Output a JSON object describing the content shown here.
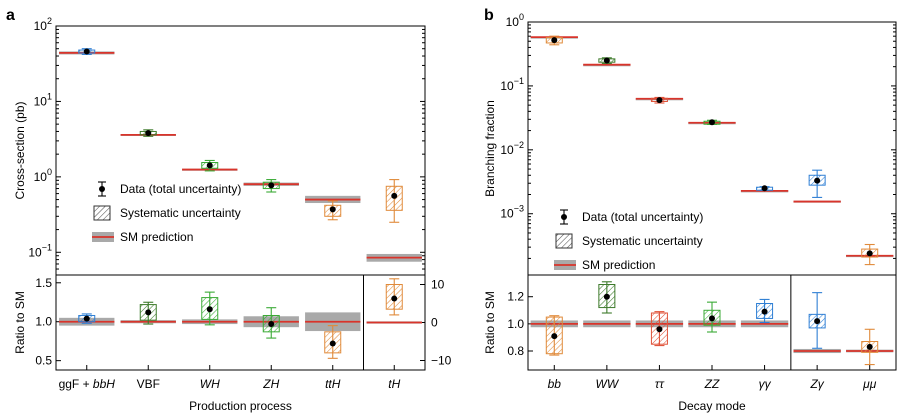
{
  "colors": {
    "blue": "#2f7fd4",
    "dark_green": "#3d7a2a",
    "green": "#3aaa35",
    "orange": "#e08a3a",
    "red": "#e0533a",
    "sm_line": "#d9342b",
    "sm_band": "#a9a9a9"
  },
  "chart_data": [
    {
      "panel_label": "a",
      "type": "scatter",
      "xlabel": "Production process",
      "categories": [
        "ggF + bbH",
        "VBF",
        "WH",
        "ZH",
        "ttH",
        "tH"
      ],
      "category_parts": [
        [
          {
            "t": "ggF + ",
            "i": false
          },
          {
            "t": "bbH",
            "i": true
          }
        ],
        [
          {
            "t": "VBF",
            "i": false
          }
        ],
        [
          {
            "t": "WH",
            "i": true
          }
        ],
        [
          {
            "t": "ZH",
            "i": true
          }
        ],
        [
          {
            "t": "ttH",
            "i": true
          }
        ],
        [
          {
            "t": "tH",
            "i": true
          }
        ]
      ],
      "category_colors": [
        "blue",
        "dark_green",
        "green",
        "green",
        "orange",
        "orange"
      ],
      "top": {
        "ylabel": "Cross-section (pb)",
        "scale": "log",
        "ylim": [
          0.05,
          100
        ],
        "tick_values": [
          0.1,
          1,
          10,
          100
        ],
        "tick_labels": [
          {
            "base": "10",
            "exp": "−1"
          },
          {
            "base": "10",
            "exp": "0"
          },
          {
            "base": "10",
            "exp": "1"
          },
          {
            "base": "10",
            "exp": "2"
          }
        ],
        "data": [
          46,
          3.8,
          1.42,
          0.77,
          0.37,
          0.56
        ],
        "total_lo": [
          42,
          3.45,
          1.2,
          0.63,
          0.27,
          0.25
        ],
        "total_hi": [
          50,
          4.2,
          1.65,
          0.92,
          0.48,
          0.92
        ],
        "syst_lo": [
          44,
          3.6,
          1.3,
          0.7,
          0.3,
          0.36
        ],
        "syst_hi": [
          48,
          4.0,
          1.55,
          0.85,
          0.42,
          0.75
        ],
        "sm": [
          44,
          3.6,
          1.25,
          0.8,
          0.5,
          0.085
        ],
        "sm_unc_lo": [
          42,
          3.5,
          1.22,
          0.76,
          0.45,
          0.075
        ],
        "sm_unc_hi": [
          46,
          3.7,
          1.28,
          0.84,
          0.56,
          0.095
        ]
      },
      "ratio": {
        "ylabel": "Ratio to SM",
        "ylim": [
          0.38,
          1.6
        ],
        "tick_values": [
          0.5,
          1.0,
          1.5
        ],
        "tick_labels": [
          "0.5",
          "1.0",
          "1.5"
        ],
        "right_axis": {
          "ylim": [
            -12.5,
            12.5
          ],
          "tick_values": [
            -10,
            0,
            10
          ],
          "tick_labels": [
            "−10",
            "0",
            "10"
          ],
          "applies_to": [
            5
          ]
        },
        "data": [
          1.04,
          1.12,
          1.16,
          0.97,
          0.72,
          6.3
        ],
        "total_lo": [
          0.98,
          0.97,
          0.96,
          0.79,
          0.53,
          2.0
        ],
        "total_hi": [
          1.1,
          1.25,
          1.38,
          1.18,
          0.95,
          11.5
        ],
        "syst_lo": [
          1.0,
          1.02,
          1.03,
          0.87,
          0.6,
          3.5
        ],
        "syst_hi": [
          1.08,
          1.22,
          1.31,
          1.08,
          0.87,
          10.0
        ],
        "sm": [
          1,
          1,
          1,
          1,
          1,
          0
        ],
        "sm_unc_lo": [
          0.95,
          0.98,
          0.97,
          0.93,
          0.88,
          -0.3
        ],
        "sm_unc_hi": [
          1.05,
          1.02,
          1.03,
          1.07,
          1.12,
          0.3
        ]
      },
      "legend": [
        {
          "label": "Data (total uncertainty)",
          "kind": "data"
        },
        {
          "label": "Systematic uncertainty",
          "kind": "syst"
        },
        {
          "label": "SM prediction",
          "kind": "sm"
        }
      ]
    },
    {
      "panel_label": "b",
      "type": "scatter",
      "xlabel": "Decay mode",
      "categories": [
        "bb",
        "WW",
        "ττ",
        "ZZ",
        "γγ",
        "Zγ",
        "μμ"
      ],
      "category_parts": [
        [
          {
            "t": "bb",
            "i": true
          }
        ],
        [
          {
            "t": "WW",
            "i": true
          }
        ],
        [
          {
            "t": "ττ",
            "i": true
          }
        ],
        [
          {
            "t": "ZZ",
            "i": true
          }
        ],
        [
          {
            "t": "γγ",
            "i": true
          }
        ],
        [
          {
            "t": "Zγ",
            "i": true
          }
        ],
        [
          {
            "t": "μμ",
            "i": true
          }
        ]
      ],
      "category_colors": [
        "orange",
        "dark_green",
        "red",
        "green",
        "blue",
        "blue",
        "orange"
      ],
      "top": {
        "ylabel": "Branching fraction",
        "scale": "log",
        "ylim": [
          0.00011,
          1
        ],
        "tick_values": [
          0.001,
          0.01,
          0.1,
          1
        ],
        "tick_labels": [
          {
            "base": "10",
            "exp": "−3"
          },
          {
            "base": "10",
            "exp": "−2"
          },
          {
            "base": "10",
            "exp": "−1"
          },
          {
            "base": "10",
            "exp": "0"
          }
        ],
        "data": [
          0.52,
          0.25,
          0.06,
          0.027,
          0.0025,
          0.0033,
          0.00024
        ],
        "total_lo": [
          0.44,
          0.225,
          0.054,
          0.025,
          0.00233,
          0.0018,
          0.00016
        ],
        "total_hi": [
          0.6,
          0.275,
          0.066,
          0.029,
          0.00265,
          0.0048,
          0.00033
        ],
        "syst_lo": [
          0.47,
          0.235,
          0.057,
          0.026,
          0.0024,
          0.0028,
          0.00021
        ],
        "syst_hi": [
          0.57,
          0.265,
          0.064,
          0.028,
          0.0026,
          0.004,
          0.00028
        ],
        "sm": [
          0.58,
          0.215,
          0.063,
          0.0265,
          0.00228,
          0.00155,
          0.00022
        ],
        "sm_unc_lo": [
          0.57,
          0.212,
          0.062,
          0.026,
          0.00224,
          0.0015,
          0.000215
        ],
        "sm_unc_hi": [
          0.59,
          0.218,
          0.064,
          0.027,
          0.00232,
          0.0016,
          0.000225
        ]
      },
      "ratio": {
        "ylabel": "Ratio to SM",
        "ylim": [
          0.66,
          1.36
        ],
        "tick_values": [
          0.8,
          1.0,
          1.2
        ],
        "tick_labels": [
          "0.8",
          "1.0",
          "1.2"
        ],
        "data": [
          0.91,
          1.2,
          0.96,
          1.04,
          1.09,
          1.02,
          0.83
        ],
        "total_lo": [
          0.77,
          1.08,
          0.84,
          0.94,
          1.01,
          0.82,
          0.7
        ],
        "total_hi": [
          1.06,
          1.31,
          1.09,
          1.16,
          1.18,
          1.23,
          0.96
        ],
        "syst_lo": [
          0.78,
          1.12,
          0.85,
          0.99,
          1.04,
          0.97,
          0.79
        ],
        "syst_hi": [
          1.05,
          1.29,
          1.08,
          1.1,
          1.15,
          1.07,
          0.87
        ],
        "sm": [
          1,
          1,
          1,
          1,
          1,
          0.8,
          0.8
        ],
        "sm_unc_lo": [
          0.975,
          0.975,
          0.975,
          0.975,
          0.975,
          0.785,
          0.79
        ],
        "sm_unc_hi": [
          1.025,
          1.025,
          1.025,
          1.025,
          1.025,
          0.815,
          0.81
        ]
      },
      "legend": [
        {
          "label": "Data (total uncertainty)",
          "kind": "data"
        },
        {
          "label": "Systematic uncertainty",
          "kind": "syst"
        },
        {
          "label": "SM prediction",
          "kind": "sm"
        }
      ]
    }
  ]
}
